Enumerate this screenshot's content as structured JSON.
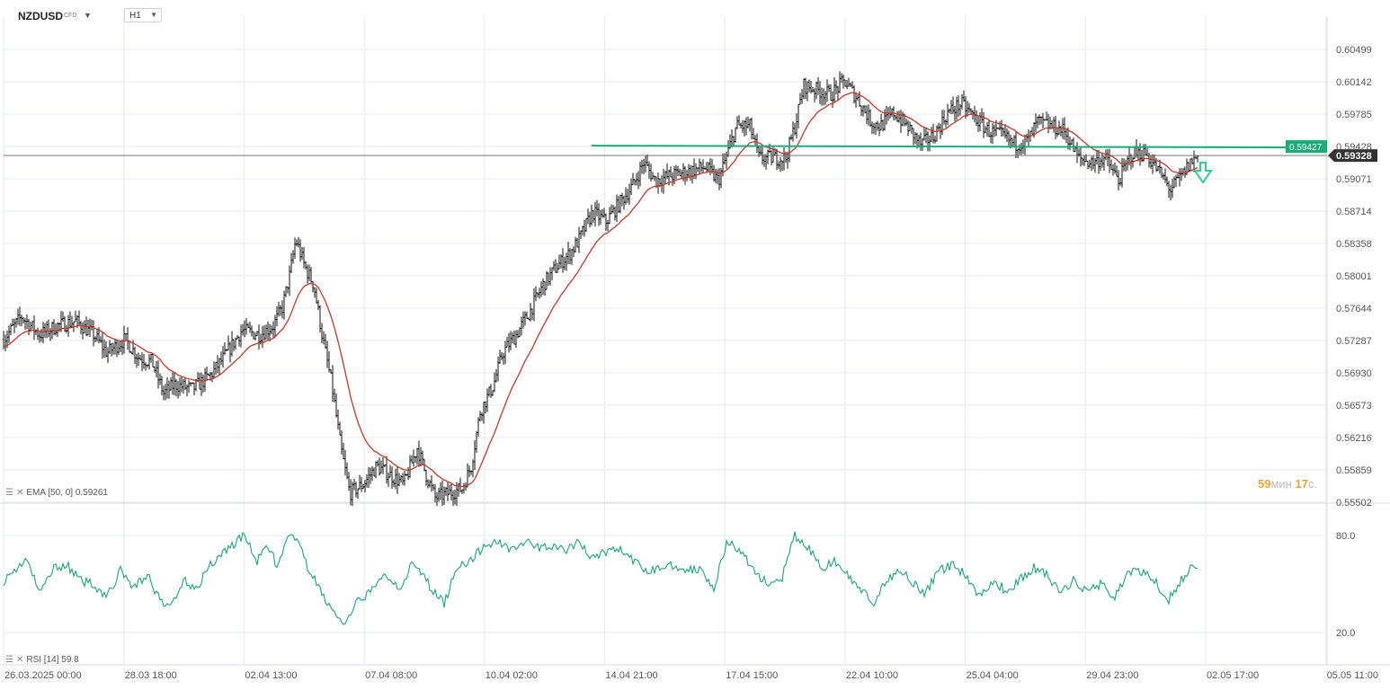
{
  "toolbar": {
    "symbol": "NZDUSD",
    "symbol_type": "CFD",
    "timeframe": "H1",
    "dropdown_icon": "chevron-down-icon"
  },
  "indicators": {
    "ema_label": "EMA [50, 0]",
    "ema_value": "0.59261",
    "rsi_label": "RSI [14]",
    "rsi_value": "59.8",
    "menu_icon": "menu-icon",
    "close_icon": "close-icon"
  },
  "timer": {
    "minutes": "59",
    "minutes_unit": "мин",
    "seconds": "17",
    "seconds_unit": "с."
  },
  "colors": {
    "candle": "#111111",
    "ema": "#c0392b",
    "rsi": "#1aa37a",
    "level": "#1aab7a",
    "price_tag": "#333333",
    "arrow": "#2ecc8f",
    "grid": "#e7e9ec"
  },
  "chart_data": [
    {
      "type": "candlestick",
      "title": "NZDUSD",
      "interval": "H1",
      "x_tick_labels": [
        "26.03.2025  00:00",
        "28.03  18:00",
        "02.04  13:00",
        "07.04  08:00",
        "10.04  02:00",
        "14.04  21:00",
        "17.04  15:00",
        "22.04  10:00",
        "25.04  04:00",
        "29.04  23:00",
        "02.05  17:00",
        "05.05  11:00"
      ],
      "y_tick_labels": [
        "0.60499",
        "0.60142",
        "0.59785",
        "0.59428",
        "0.59071",
        "0.58714",
        "0.58358",
        "0.58001",
        "0.57644",
        "0.57287",
        "0.56930",
        "0.56573",
        "0.56216",
        "0.55859",
        "0.55502"
      ],
      "ylim": [
        0.5546,
        0.6064
      ],
      "price_path": [
        [
          0,
          0.573
        ],
        [
          20,
          0.5755
        ],
        [
          40,
          0.5735
        ],
        [
          60,
          0.5745
        ],
        [
          80,
          0.575
        ],
        [
          100,
          0.5735
        ],
        [
          115,
          0.5715
        ],
        [
          135,
          0.573
        ],
        [
          150,
          0.571
        ],
        [
          165,
          0.5705
        ],
        [
          178,
          0.567
        ],
        [
          190,
          0.568
        ],
        [
          210,
          0.5675
        ],
        [
          230,
          0.569
        ],
        [
          245,
          0.571
        ],
        [
          265,
          0.574
        ],
        [
          285,
          0.5735
        ],
        [
          300,
          0.5745
        ],
        [
          310,
          0.5765
        ],
        [
          318,
          0.58
        ],
        [
          325,
          0.584
        ],
        [
          335,
          0.581
        ],
        [
          345,
          0.579
        ],
        [
          355,
          0.573
        ],
        [
          365,
          0.568
        ],
        [
          375,
          0.561
        ],
        [
          385,
          0.556
        ],
        [
          400,
          0.557
        ],
        [
          415,
          0.559
        ],
        [
          430,
          0.558
        ],
        [
          445,
          0.557
        ],
        [
          460,
          0.561
        ],
        [
          470,
          0.558
        ],
        [
          480,
          0.5555
        ],
        [
          495,
          0.556
        ],
        [
          510,
          0.5565
        ],
        [
          520,
          0.559
        ],
        [
          530,
          0.565
        ],
        [
          545,
          0.568
        ],
        [
          555,
          0.5715
        ],
        [
          570,
          0.5735
        ],
        [
          585,
          0.576
        ],
        [
          600,
          0.579
        ],
        [
          615,
          0.581
        ],
        [
          630,
          0.5825
        ],
        [
          640,
          0.584
        ],
        [
          655,
          0.587
        ],
        [
          670,
          0.586
        ],
        [
          685,
          0.588
        ],
        [
          700,
          0.59
        ],
        [
          712,
          0.5925
        ],
        [
          725,
          0.5905
        ],
        [
          740,
          0.591
        ],
        [
          760,
          0.5915
        ],
        [
          780,
          0.592
        ],
        [
          795,
          0.5905
        ],
        [
          805,
          0.5935
        ],
        [
          815,
          0.5965
        ],
        [
          830,
          0.5965
        ],
        [
          840,
          0.593
        ],
        [
          855,
          0.593
        ],
        [
          870,
          0.593
        ],
        [
          880,
          0.5965
        ],
        [
          890,
          0.601
        ],
        [
          905,
          0.6005
        ],
        [
          920,
          0.6
        ],
        [
          935,
          0.6015
        ],
        [
          950,
          0.5995
        ],
        [
          965,
          0.597
        ],
        [
          975,
          0.5965
        ],
        [
          990,
          0.598
        ],
        [
          1005,
          0.5965
        ],
        [
          1020,
          0.5945
        ],
        [
          1035,
          0.5955
        ],
        [
          1050,
          0.598
        ],
        [
          1065,
          0.599
        ],
        [
          1080,
          0.5975
        ],
        [
          1095,
          0.596
        ],
        [
          1110,
          0.5955
        ],
        [
          1125,
          0.5945
        ],
        [
          1140,
          0.595
        ],
        [
          1150,
          0.597
        ],
        [
          1165,
          0.5965
        ],
        [
          1180,
          0.596
        ],
        [
          1195,
          0.593
        ],
        [
          1210,
          0.5925
        ],
        [
          1225,
          0.593
        ],
        [
          1240,
          0.5905
        ],
        [
          1255,
          0.5935
        ],
        [
          1270,
          0.5935
        ],
        [
          1285,
          0.5915
        ],
        [
          1298,
          0.5895
        ],
        [
          1310,
          0.591
        ],
        [
          1320,
          0.5925
        ],
        [
          1328,
          0.5932
        ]
      ],
      "ema": {
        "period": 50,
        "value": 0.59261
      },
      "horizontal_level": 0.59427,
      "last_price": 0.59328,
      "price_labels": [
        "0.59427",
        "0.59328"
      ]
    },
    {
      "type": "line",
      "title": "RSI [14]",
      "y_tick_labels": [
        "80.0",
        "20.0"
      ],
      "ylim": [
        12,
        88
      ],
      "last_value": 59.8,
      "rsi_path": [
        [
          0,
          52
        ],
        [
          12,
          58
        ],
        [
          25,
          66
        ],
        [
          40,
          44
        ],
        [
          55,
          60
        ],
        [
          70,
          62
        ],
        [
          85,
          52
        ],
        [
          100,
          50
        ],
        [
          115,
          42
        ],
        [
          130,
          58
        ],
        [
          145,
          48
        ],
        [
          160,
          56
        ],
        [
          175,
          38
        ],
        [
          185,
          36
        ],
        [
          200,
          52
        ],
        [
          215,
          48
        ],
        [
          230,
          62
        ],
        [
          245,
          70
        ],
        [
          258,
          76
        ],
        [
          268,
          80
        ],
        [
          282,
          64
        ],
        [
          295,
          74
        ],
        [
          305,
          60
        ],
        [
          315,
          76
        ],
        [
          325,
          80
        ],
        [
          335,
          64
        ],
        [
          350,
          48
        ],
        [
          365,
          34
        ],
        [
          380,
          24
        ],
        [
          395,
          40
        ],
        [
          410,
          46
        ],
        [
          425,
          56
        ],
        [
          440,
          48
        ],
        [
          455,
          62
        ],
        [
          468,
          54
        ],
        [
          480,
          44
        ],
        [
          490,
          38
        ],
        [
          505,
          62
        ],
        [
          520,
          64
        ],
        [
          535,
          74
        ],
        [
          550,
          76
        ],
        [
          565,
          72
        ],
        [
          580,
          76
        ],
        [
          595,
          72
        ],
        [
          610,
          74
        ],
        [
          625,
          70
        ],
        [
          640,
          76
        ],
        [
          655,
          66
        ],
        [
          670,
          70
        ],
        [
          685,
          72
        ],
        [
          700,
          64
        ],
        [
          715,
          58
        ],
        [
          730,
          60
        ],
        [
          745,
          62
        ],
        [
          760,
          58
        ],
        [
          775,
          60
        ],
        [
          790,
          48
        ],
        [
          805,
          76
        ],
        [
          820,
          70
        ],
        [
          835,
          58
        ],
        [
          850,
          50
        ],
        [
          865,
          52
        ],
        [
          880,
          80
        ],
        [
          895,
          72
        ],
        [
          910,
          60
        ],
        [
          925,
          64
        ],
        [
          940,
          54
        ],
        [
          955,
          46
        ],
        [
          968,
          36
        ],
        [
          980,
          50
        ],
        [
          995,
          60
        ],
        [
          1010,
          52
        ],
        [
          1025,
          44
        ],
        [
          1040,
          58
        ],
        [
          1055,
          62
        ],
        [
          1070,
          56
        ],
        [
          1085,
          42
        ],
        [
          1100,
          52
        ],
        [
          1115,
          46
        ],
        [
          1130,
          52
        ],
        [
          1145,
          60
        ],
        [
          1160,
          56
        ],
        [
          1175,
          44
        ],
        [
          1190,
          52
        ],
        [
          1205,
          46
        ],
        [
          1220,
          50
        ],
        [
          1235,
          42
        ],
        [
          1250,
          56
        ],
        [
          1265,
          58
        ],
        [
          1280,
          52
        ],
        [
          1295,
          40
        ],
        [
          1310,
          52
        ],
        [
          1320,
          60
        ],
        [
          1328,
          59.8
        ]
      ]
    }
  ]
}
